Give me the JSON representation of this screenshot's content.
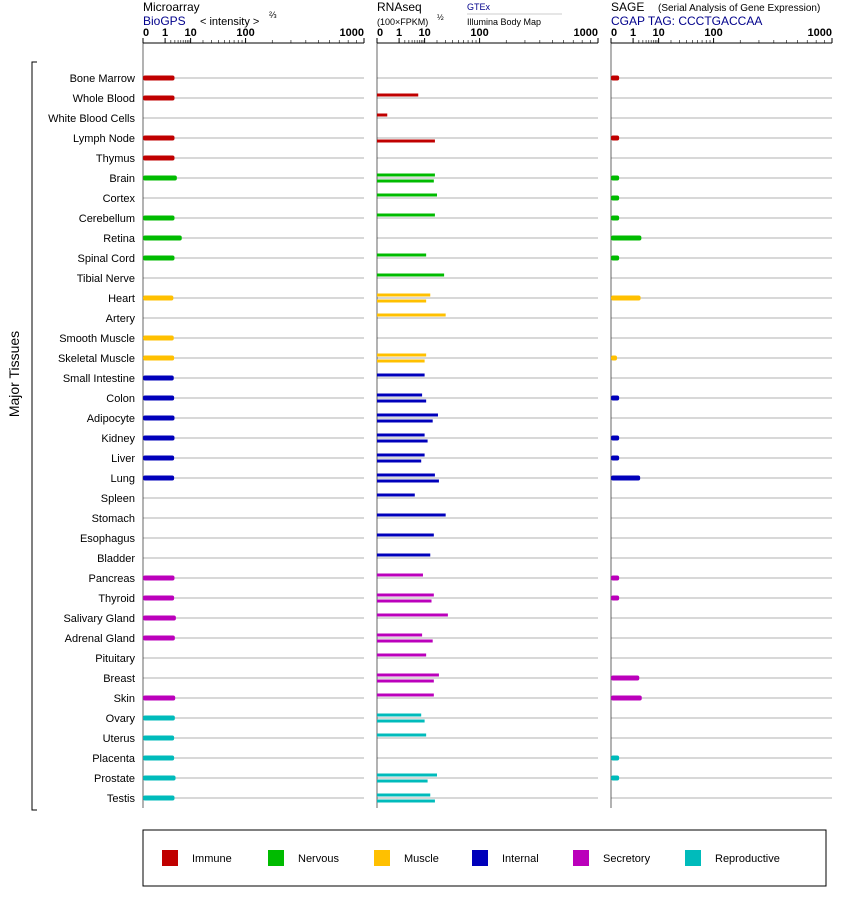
{
  "panels": {
    "microarray": {
      "title": "Microarray",
      "source": "BioGPS",
      "unit_label": "< intensity >",
      "unit_exp": "⅔",
      "ticks": [
        "0",
        "1",
        "10",
        "100",
        "1000"
      ]
    },
    "rnaseq": {
      "title": "RNAseq",
      "unit_label": "(100×FPKM)",
      "unit_exp": "½",
      "legend_1": "GTEx",
      "legend_2": "Illumina Body Map",
      "ticks": [
        "0",
        "1",
        "10",
        "100",
        "1000"
      ]
    },
    "sage": {
      "title": "SAGE",
      "subtitle": "(Serial Analysis of Gene Expression)",
      "source": "CGAP TAG: CCCTGACCAA",
      "ticks": [
        "0",
        "1",
        "10",
        "100",
        "1000"
      ]
    }
  },
  "y_axis_label": "Major Tissues",
  "colors": {
    "Immune": "#c00000",
    "Nervous": "#00bb00",
    "Muscle": "#ffc000",
    "Internal": "#0000bb",
    "Secretory": "#bb00bb",
    "Reproductive": "#00bbbb"
  },
  "legend": [
    "Immune",
    "Nervous",
    "Muscle",
    "Internal",
    "Secretory",
    "Reproductive"
  ],
  "chart_data": {
    "type": "bar",
    "scale": "log-like (0,1,10,100,1000)",
    "tissues": [
      {
        "name": "Bone Marrow",
        "group": "Immune",
        "micro": 2.9,
        "gtex": null,
        "ibm": null,
        "sage": 0.05
      },
      {
        "name": "Whole Blood",
        "group": "Immune",
        "micro": 2.9,
        "gtex": 6.5,
        "ibm": null,
        "sage": null
      },
      {
        "name": "White Blood Cells",
        "group": "Immune",
        "micro": null,
        "gtex": 0.1,
        "ibm": null,
        "sage": null
      },
      {
        "name": "Lymph Node",
        "group": "Immune",
        "micro": 2.9,
        "gtex": null,
        "ibm": 18,
        "sage": 0.05
      },
      {
        "name": "Thymus",
        "group": "Immune",
        "micro": 2.9,
        "gtex": null,
        "ibm": null,
        "sage": null
      },
      {
        "name": "Brain",
        "group": "Nervous",
        "micro": 3.6,
        "gtex": 18,
        "ibm": 17,
        "sage": 0.05
      },
      {
        "name": "Cortex",
        "group": "Nervous",
        "micro": null,
        "gtex": 20,
        "ibm": null,
        "sage": 0.05
      },
      {
        "name": "Cerebellum",
        "group": "Nervous",
        "micro": 2.9,
        "gtex": 18,
        "ibm": null,
        "sage": 0.05
      },
      {
        "name": "Retina",
        "group": "Nervous",
        "micro": 5.4,
        "gtex": null,
        "ibm": null,
        "sage": 2.6
      },
      {
        "name": "Spinal Cord",
        "group": "Nervous",
        "micro": 2.9,
        "gtex": 11,
        "ibm": null,
        "sage": 0.05
      },
      {
        "name": "Tibial Nerve",
        "group": "Nervous",
        "micro": null,
        "gtex": 28,
        "ibm": null,
        "sage": null
      },
      {
        "name": "Heart",
        "group": "Muscle",
        "micro": 2.6,
        "gtex": 14,
        "ibm": 11,
        "sage": 2.4
      },
      {
        "name": "Artery",
        "group": "Muscle",
        "micro": null,
        "gtex": 30,
        "ibm": null,
        "sage": null
      },
      {
        "name": "Smooth Muscle",
        "group": "Muscle",
        "micro": 2.7,
        "gtex": null,
        "ibm": null,
        "sage": null
      },
      {
        "name": "Skeletal Muscle",
        "group": "Muscle",
        "micro": 2.8,
        "gtex": 11,
        "ibm": 10,
        "sage": 0.02
      },
      {
        "name": "Small Intestine",
        "group": "Internal",
        "micro": 2.7,
        "gtex": 10,
        "ibm": null,
        "sage": null
      },
      {
        "name": "Colon",
        "group": "Internal",
        "micro": 2.8,
        "gtex": 8.5,
        "ibm": 11,
        "sage": 0.05
      },
      {
        "name": "Adipocyte",
        "group": "Internal",
        "micro": 2.9,
        "gtex": 21,
        "ibm": 16,
        "sage": null
      },
      {
        "name": "Kidney",
        "group": "Internal",
        "micro": 2.9,
        "gtex": 10,
        "ibm": 12,
        "sage": 0.05
      },
      {
        "name": "Liver",
        "group": "Internal",
        "micro": 2.8,
        "gtex": 10,
        "ibm": 8,
        "sage": 0.05
      },
      {
        "name": "Lung",
        "group": "Internal",
        "micro": 2.8,
        "gtex": 18,
        "ibm": 22,
        "sage": 2.3
      },
      {
        "name": "Spleen",
        "group": "Internal",
        "micro": null,
        "gtex": 5,
        "ibm": null,
        "sage": null
      },
      {
        "name": "Stomach",
        "group": "Internal",
        "micro": null,
        "gtex": 30,
        "ibm": null,
        "sage": null
      },
      {
        "name": "Esophagus",
        "group": "Internal",
        "micro": null,
        "gtex": 17,
        "ibm": null,
        "sage": null
      },
      {
        "name": "Bladder",
        "group": "Internal",
        "micro": null,
        "gtex": 14,
        "ibm": null,
        "sage": null
      },
      {
        "name": "Pancreas",
        "group": "Secretory",
        "micro": 2.9,
        "gtex": 9,
        "ibm": null,
        "sage": 0.05
      },
      {
        "name": "Thyroid",
        "group": "Secretory",
        "micro": 2.8,
        "gtex": 17,
        "ibm": 15,
        "sage": 0.05
      },
      {
        "name": "Salivary Gland",
        "group": "Secretory",
        "micro": 3.3,
        "gtex": 33,
        "ibm": null,
        "sage": null
      },
      {
        "name": "Adrenal Gland",
        "group": "Secretory",
        "micro": 3.0,
        "gtex": 8.5,
        "ibm": 16,
        "sage": null
      },
      {
        "name": "Pituitary",
        "group": "Secretory",
        "micro": null,
        "gtex": 11,
        "ibm": null,
        "sage": null
      },
      {
        "name": "Breast",
        "group": "Secretory",
        "micro": null,
        "gtex": 22,
        "ibm": 17,
        "sage": 2.1
      },
      {
        "name": "Skin",
        "group": "Secretory",
        "micro": 3.1,
        "gtex": 17,
        "ibm": null,
        "sage": 2.7
      },
      {
        "name": "Ovary",
        "group": "Reproductive",
        "micro": 3.0,
        "gtex": 8,
        "ibm": 10,
        "sage": null
      },
      {
        "name": "Uterus",
        "group": "Reproductive",
        "micro": 2.8,
        "gtex": 11,
        "ibm": null,
        "sage": null
      },
      {
        "name": "Placenta",
        "group": "Reproductive",
        "micro": 2.8,
        "gtex": null,
        "ibm": null,
        "sage": 0.05
      },
      {
        "name": "Prostate",
        "group": "Reproductive",
        "micro": 3.2,
        "gtex": 20,
        "ibm": 12,
        "sage": 0.05
      },
      {
        "name": "Testis",
        "group": "Reproductive",
        "micro": 2.9,
        "gtex": 14,
        "ibm": 18,
        "sage": null
      }
    ]
  }
}
